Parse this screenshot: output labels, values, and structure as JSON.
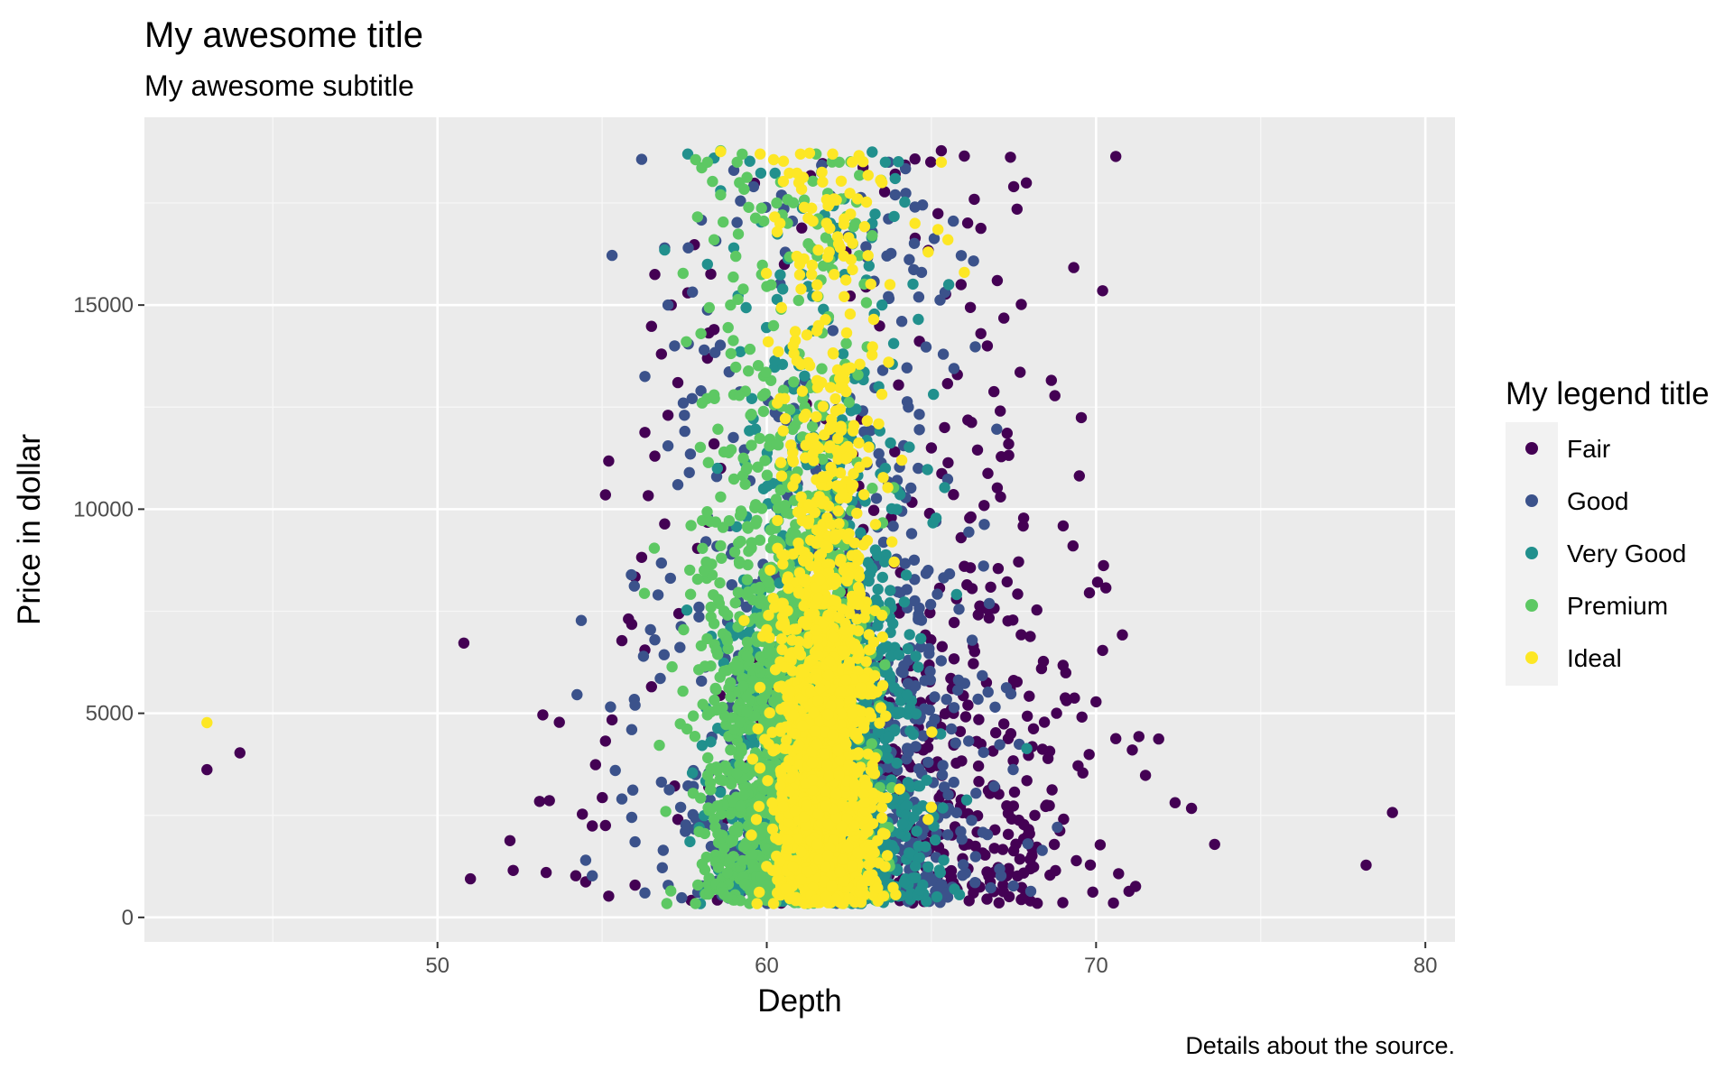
{
  "chart_data": {
    "type": "scatter",
    "title": "My awesome title",
    "subtitle": "My awesome subtitle",
    "xlabel": "Depth",
    "ylabel": "Price in dollar",
    "caption": "Details about the source.",
    "legend_title": "My legend title",
    "legend_position": "right",
    "grid": true,
    "xlim": [
      41.1,
      80.9
    ],
    "ylim": [
      -600,
      19600
    ],
    "x_ticks": [
      50,
      60,
      70,
      80
    ],
    "y_ticks": [
      0,
      5000,
      10000,
      15000
    ],
    "x_tick_labels": [
      "50",
      "60",
      "70",
      "80"
    ],
    "y_tick_labels": [
      "0",
      "5000",
      "10000",
      "15000"
    ],
    "series": [
      {
        "name": "Fair",
        "color": "#440154",
        "center": [
          64.5,
          3800
        ],
        "spread": [
          2.8,
          3600
        ],
        "points": [
          [
            43.0,
            3620
          ],
          [
            44.0,
            4030
          ],
          [
            50.8,
            6720
          ],
          [
            51.0,
            945
          ],
          [
            52.2,
            1880
          ],
          [
            52.3,
            1150
          ],
          [
            53.1,
            2840
          ],
          [
            53.2,
            4960
          ],
          [
            53.3,
            1100
          ],
          [
            53.4,
            2860
          ],
          [
            53.7,
            4780
          ],
          [
            54.2,
            1020
          ],
          [
            55.2,
            11180
          ],
          [
            55.1,
            10350
          ],
          [
            56.5,
            14480
          ],
          [
            56.6,
            15750
          ],
          [
            65.3,
            18780
          ],
          [
            66.0,
            18650
          ],
          [
            66.1,
            17010
          ],
          [
            66.3,
            17590
          ],
          [
            67.4,
            18620
          ],
          [
            67.5,
            17900
          ],
          [
            67.6,
            17350
          ],
          [
            70.2,
            15350
          ],
          [
            70.6,
            18640
          ],
          [
            69.0,
            9590
          ],
          [
            69.3,
            9100
          ],
          [
            69.8,
            7950
          ],
          [
            70.0,
            5280
          ],
          [
            70.2,
            6540
          ],
          [
            70.6,
            4380
          ],
          [
            70.8,
            6920
          ],
          [
            71.1,
            4100
          ],
          [
            71.3,
            4430
          ],
          [
            71.5,
            3480
          ],
          [
            71.9,
            4370
          ],
          [
            72.4,
            2810
          ],
          [
            72.9,
            2670
          ],
          [
            73.6,
            1790
          ],
          [
            78.2,
            1280
          ],
          [
            79.0,
            2570
          ],
          [
            69.9,
            620
          ],
          [
            71.0,
            640
          ],
          [
            71.2,
            760
          ],
          [
            69.4,
            1390
          ],
          [
            68.5,
            2750
          ],
          [
            67.9,
            3350
          ],
          [
            67.1,
            10300
          ],
          [
            67.0,
            10520
          ],
          [
            67.8,
            9780
          ],
          [
            66.9,
            12880
          ],
          [
            66.5,
            14300
          ],
          [
            67.2,
            14680
          ],
          [
            67.0,
            15600
          ],
          [
            65.9,
            15500
          ],
          [
            67.3,
            11860
          ],
          [
            66.4,
            11450
          ],
          [
            68.2,
            7530
          ],
          [
            68.0,
            6880
          ],
          [
            68.4,
            6270
          ],
          [
            67.6,
            5770
          ],
          [
            66.8,
            8090
          ],
          [
            67.3,
            8220
          ],
          [
            66.2,
            9810
          ],
          [
            65.2,
            17240
          ],
          [
            64.5,
            18580
          ],
          [
            64.2,
            18430
          ],
          [
            63.9,
            18210
          ],
          [
            66.5,
            16880
          ],
          [
            66.7,
            14000
          ],
          [
            65.4,
            12000
          ],
          [
            65.0,
            11500
          ],
          [
            66.6,
            10090
          ],
          [
            65.9,
            9300
          ],
          [
            66.0,
            8600
          ],
          [
            68.8,
            5000
          ],
          [
            69.1,
            5310
          ],
          [
            68.1,
            4620
          ],
          [
            69.6,
            3540
          ],
          [
            68.9,
            2120
          ],
          [
            68.2,
            1720
          ],
          [
            68.0,
            1420
          ],
          [
            67.5,
            1630
          ],
          [
            67.2,
            4740
          ],
          [
            66.7,
            7550
          ],
          [
            57.1,
            15000
          ],
          [
            57.3,
            13100
          ],
          [
            56.8,
            13800
          ],
          [
            57.0,
            12300
          ],
          [
            56.3,
            11880
          ],
          [
            56.6,
            11300
          ],
          [
            56.4,
            10330
          ],
          [
            56.9,
            9640
          ],
          [
            56.2,
            8820
          ],
          [
            56.0,
            8340
          ],
          [
            55.8,
            7310
          ],
          [
            55.9,
            7180
          ],
          [
            55.6,
            6780
          ],
          [
            56.3,
            6550
          ],
          [
            56.5,
            5650
          ],
          [
            55.3,
            4840
          ],
          [
            55.1,
            4320
          ],
          [
            54.8,
            3740
          ],
          [
            55.1,
            2250
          ],
          [
            54.4,
            2530
          ],
          [
            54.7,
            2240
          ],
          [
            54.5,
            870
          ],
          [
            55.2,
            520
          ],
          [
            56.0,
            790
          ],
          [
            57.3,
            2400
          ],
          [
            57.2,
            3220
          ],
          [
            58.2,
            9680
          ],
          [
            57.9,
            9040
          ],
          [
            58.4,
            11600
          ],
          [
            58.6,
            11000
          ],
          [
            58.2,
            13700
          ],
          [
            58.4,
            14400
          ],
          [
            57.6,
            15300
          ],
          [
            58.3,
            15760
          ],
          [
            57.8,
            16480
          ]
        ]
      },
      {
        "name": "Good",
        "color": "#3b528b",
        "center": [
          62.0,
          4500
        ],
        "spread": [
          2.3,
          4200
        ],
        "points": [
          [
            56.2,
            18570
          ],
          [
            56.9,
            16400
          ],
          [
            57.0,
            15000
          ],
          [
            57.2,
            14000
          ],
          [
            57.5,
            12300
          ],
          [
            57.0,
            11550
          ],
          [
            57.3,
            10600
          ],
          [
            56.8,
            8680
          ],
          [
            56.7,
            7900
          ],
          [
            56.6,
            6800
          ],
          [
            56.0,
            5200
          ],
          [
            55.9,
            4600
          ],
          [
            55.4,
            3600
          ],
          [
            55.6,
            2900
          ],
          [
            55.9,
            2450
          ],
          [
            56.0,
            1850
          ],
          [
            54.5,
            1400
          ],
          [
            56.3,
            600
          ],
          [
            58.1,
            13900
          ],
          [
            58.2,
            14880
          ],
          [
            58.0,
            12900
          ],
          [
            64.5,
            17400
          ],
          [
            64.7,
            15800
          ],
          [
            64.1,
            14600
          ],
          [
            64.3,
            12500
          ],
          [
            64.6,
            11000
          ],
          [
            64.4,
            9400
          ],
          [
            64.9,
            8500
          ],
          [
            64.6,
            7300
          ],
          [
            64.3,
            6300
          ],
          [
            64.8,
            5800
          ],
          [
            65.0,
            4700
          ],
          [
            64.9,
            3800
          ],
          [
            65.2,
            2700
          ],
          [
            64.8,
            1600
          ],
          [
            65.0,
            900
          ],
          [
            63.7,
            18500
          ],
          [
            63.9,
            17700
          ],
          [
            59.0,
            18300
          ],
          [
            59.6,
            17900
          ],
          [
            56.3,
            13250
          ],
          [
            64.1,
            9950
          ],
          [
            54.7,
            1020
          ]
        ]
      },
      {
        "name": "Very Good",
        "color": "#21908d",
        "center": [
          61.9,
          3800
        ],
        "spread": [
          1.4,
          3800
        ],
        "points": [
          [
            56.9,
            16350
          ],
          [
            57.6,
            18700
          ],
          [
            58.4,
            18600
          ],
          [
            58.6,
            17800
          ],
          [
            59.0,
            16400
          ],
          [
            63.2,
            18750
          ],
          [
            63.6,
            18500
          ],
          [
            63.9,
            18100
          ],
          [
            63.2,
            17000
          ],
          [
            63.5,
            15000
          ],
          [
            63.4,
            13000
          ],
          [
            63.6,
            11000
          ],
          [
            63.3,
            9000
          ],
          [
            63.1,
            7000
          ],
          [
            63.4,
            5000
          ],
          [
            63.2,
            3200
          ],
          [
            63.1,
            1500
          ],
          [
            58.2,
            16000
          ],
          [
            58.5,
            11000
          ],
          [
            58.7,
            7500
          ],
          [
            58.3,
            4300
          ],
          [
            58.4,
            2400
          ],
          [
            58.6,
            700
          ],
          [
            59.0,
            500
          ],
          [
            60.0,
            430
          ],
          [
            61.0,
            420
          ],
          [
            62.0,
            430
          ],
          [
            63.0,
            450
          ],
          [
            64.0,
            520
          ],
          [
            60.5,
            2750
          ],
          [
            61.5,
            2780
          ],
          [
            59.5,
            2760
          ],
          [
            62.5,
            2760
          ]
        ]
      },
      {
        "name": "Premium",
        "color": "#5dc863",
        "center": [
          60.6,
          5200
        ],
        "spread": [
          1.3,
          4600
        ],
        "points": [
          [
            58.6,
            18780
          ],
          [
            59.1,
            18500
          ],
          [
            58.2,
            18500
          ],
          [
            58.6,
            17700
          ],
          [
            58.4,
            16600
          ],
          [
            58.9,
            15000
          ],
          [
            58.0,
            14300
          ],
          [
            58.4,
            12800
          ],
          [
            58.7,
            11400
          ],
          [
            58.6,
            10300
          ],
          [
            57.7,
            9600
          ],
          [
            58.1,
            8500
          ],
          [
            58.7,
            7500
          ],
          [
            59.4,
            6400
          ],
          [
            59.6,
            5800
          ],
          [
            60.3,
            17500
          ],
          [
            61.5,
            18700
          ],
          [
            62.2,
            18500
          ],
          [
            62.7,
            17000
          ],
          [
            63.2,
            16700
          ],
          [
            58.9,
            4100
          ],
          [
            59.3,
            3000
          ],
          [
            59.5,
            2000
          ],
          [
            60.0,
            800
          ],
          [
            58.8,
            500
          ],
          [
            58.5,
            2730
          ],
          [
            59.2,
            2720
          ],
          [
            59.8,
            2730
          ]
        ]
      },
      {
        "name": "Ideal",
        "color": "#fde725",
        "center": [
          61.8,
          4200
        ],
        "spread": [
          0.75,
          4200
        ],
        "points": [
          [
            43.0,
            4770
          ],
          [
            58.6,
            18760
          ],
          [
            59.8,
            18700
          ],
          [
            61.3,
            18720
          ],
          [
            62.0,
            18700
          ],
          [
            62.8,
            18660
          ],
          [
            65.3,
            18500
          ],
          [
            65.2,
            16850
          ],
          [
            65.5,
            16600
          ],
          [
            66.0,
            15800
          ],
          [
            64.9,
            16300
          ],
          [
            64.5,
            17000
          ],
          [
            63.5,
            18000
          ],
          [
            63.7,
            13600
          ],
          [
            64.1,
            11200
          ],
          [
            63.8,
            9200
          ],
          [
            63.5,
            7400
          ],
          [
            64.9,
            2400
          ],
          [
            65.0,
            2700
          ],
          [
            60.5,
            2720
          ],
          [
            61.2,
            2740
          ],
          [
            61.8,
            2730
          ],
          [
            62.3,
            2740
          ],
          [
            61.5,
            430
          ],
          [
            62.1,
            440
          ],
          [
            61.8,
            500
          ],
          [
            62.5,
            460
          ],
          [
            60.7,
            460
          ],
          [
            60.4,
            17000
          ],
          [
            61.0,
            16000
          ],
          [
            60.8,
            14000
          ]
        ]
      }
    ],
    "background_density_note": ""
  }
}
